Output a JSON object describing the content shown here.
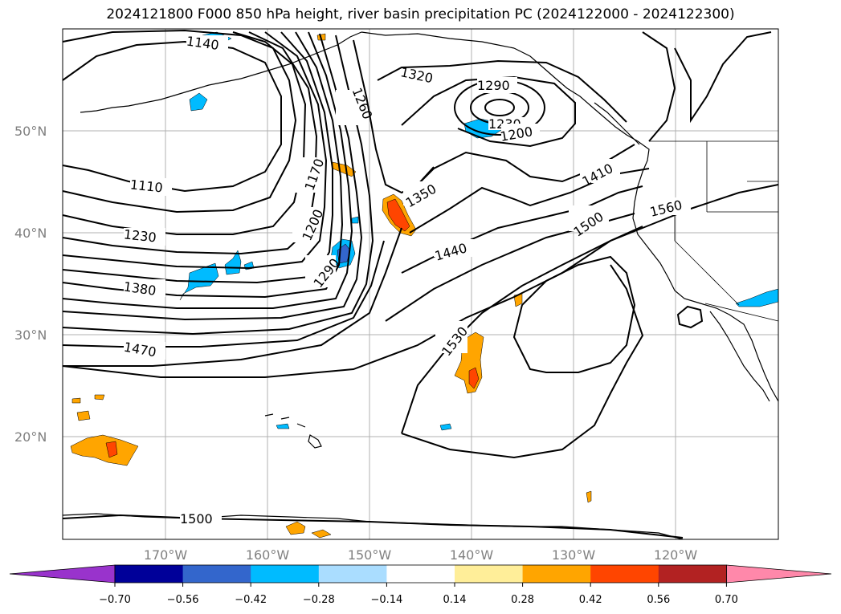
{
  "title": "2024121800 F000 850 hPa height, river basin precipitation PC (2024122000 - 2024122300)",
  "lat_labels": [
    "50°N",
    "40°N",
    "30°N",
    "20°N"
  ],
  "lon_labels": [
    "170°W",
    "160°W",
    "150°W",
    "140°W",
    "130°W",
    "120°W"
  ],
  "contour_labels": [
    "1140",
    "1260",
    "1320",
    "1290",
    "1230",
    "1200",
    "1170",
    "1110",
    "1350",
    "1410",
    "1560",
    "1200",
    "1500",
    "1230",
    "1440",
    "1290",
    "1380",
    "1530",
    "1470",
    "1500"
  ],
  "colorbar": {
    "ticks": [
      "−0.70",
      "−0.56",
      "−0.42",
      "−0.28",
      "−0.14",
      "0.14",
      "0.28",
      "0.42",
      "0.56",
      "0.70"
    ],
    "colors": [
      "#9933cc",
      "#000099",
      "#3366cc",
      "#00bbff",
      "#aaddff",
      "#ffffff",
      "#ffee99",
      "#ffa500",
      "#ff4500",
      "#b22222",
      "#ff88aa",
      "#ff88aa"
    ]
  }
}
